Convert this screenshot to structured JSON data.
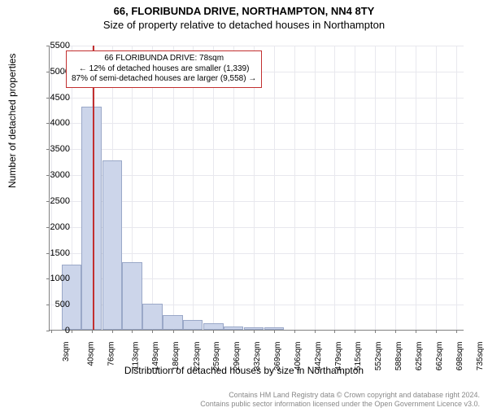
{
  "title_line1": "66, FLORIBUNDA DRIVE, NORTHAMPTON, NN4 8TY",
  "title_line2": "Size of property relative to detached houses in Northampton",
  "ylabel": "Number of detached properties",
  "xlabel": "Distribution of detached houses by size in Northampton",
  "chart": {
    "type": "histogram",
    "ylim": [
      0,
      5500
    ],
    "ytick_step": 500,
    "xlim_sqm": [
      0,
      750
    ],
    "xticks": [
      "3sqm",
      "40sqm",
      "76sqm",
      "113sqm",
      "149sqm",
      "186sqm",
      "223sqm",
      "259sqm",
      "296sqm",
      "332sqm",
      "369sqm",
      "406sqm",
      "442sqm",
      "479sqm",
      "515sqm",
      "552sqm",
      "588sqm",
      "625sqm",
      "662sqm",
      "698sqm",
      "735sqm"
    ],
    "bars": [
      {
        "x_sqm": 40,
        "count": 1250
      },
      {
        "x_sqm": 76,
        "count": 4300
      },
      {
        "x_sqm": 113,
        "count": 3270
      },
      {
        "x_sqm": 149,
        "count": 1300
      },
      {
        "x_sqm": 186,
        "count": 500
      },
      {
        "x_sqm": 223,
        "count": 290
      },
      {
        "x_sqm": 259,
        "count": 190
      },
      {
        "x_sqm": 296,
        "count": 120
      },
      {
        "x_sqm": 332,
        "count": 60
      },
      {
        "x_sqm": 369,
        "count": 50
      },
      {
        "x_sqm": 406,
        "count": 50
      }
    ],
    "bar_width_sqm": 36,
    "bar_fill": "#ccd5ea",
    "bar_stroke": "#9aa8c8",
    "marker_sqm": 78,
    "marker_color": "#c23030",
    "grid_color": "#e8e8ee",
    "background": "#ffffff"
  },
  "annotation": {
    "line1": "66 FLORIBUNDA DRIVE: 78sqm",
    "line2": "← 12% of detached houses are smaller (1,339)",
    "line3": "87% of semi-detached houses are larger (9,558) →",
    "border_color": "#c23030"
  },
  "footer": {
    "line1": "Contains HM Land Registry data © Crown copyright and database right 2024.",
    "line2": "Contains public sector information licensed under the Open Government Licence v3.0."
  }
}
